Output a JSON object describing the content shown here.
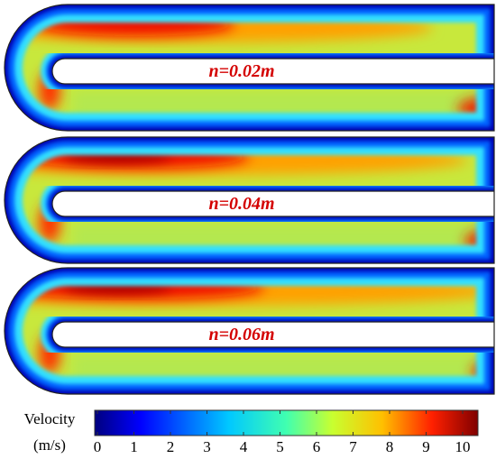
{
  "panels": [
    {
      "label": "n=0.02m"
    },
    {
      "label": "n=0.04m"
    },
    {
      "label": "n=0.06m"
    }
  ],
  "colorbar": {
    "title": "Velocity",
    "unit": "(m/s)",
    "range": [
      0,
      10
    ],
    "ticks": [
      0,
      1,
      2,
      3,
      4,
      5,
      6,
      7,
      8,
      9,
      10
    ]
  }
}
